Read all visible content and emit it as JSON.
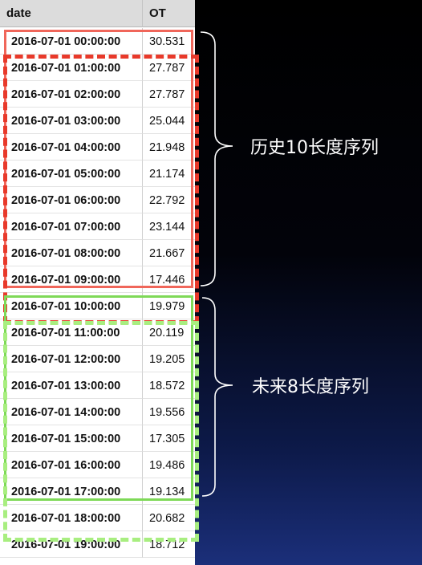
{
  "table": {
    "columns": [
      "date",
      "OT"
    ],
    "rows": [
      {
        "date": "2016-07-01 00:00:00",
        "ot": "30.531"
      },
      {
        "date": "2016-07-01 01:00:00",
        "ot": "27.787"
      },
      {
        "date": "2016-07-01 02:00:00",
        "ot": "27.787"
      },
      {
        "date": "2016-07-01 03:00:00",
        "ot": "25.044"
      },
      {
        "date": "2016-07-01 04:00:00",
        "ot": "21.948"
      },
      {
        "date": "2016-07-01 05:00:00",
        "ot": "21.174"
      },
      {
        "date": "2016-07-01 06:00:00",
        "ot": "22.792"
      },
      {
        "date": "2016-07-01 07:00:00",
        "ot": "23.144"
      },
      {
        "date": "2016-07-01 08:00:00",
        "ot": "21.667"
      },
      {
        "date": "2016-07-01 09:00:00",
        "ot": "17.446"
      },
      {
        "date": "2016-07-01 10:00:00",
        "ot": "19.979"
      },
      {
        "date": "2016-07-01 11:00:00",
        "ot": "20.119"
      },
      {
        "date": "2016-07-01 12:00:00",
        "ot": "19.205"
      },
      {
        "date": "2016-07-01 13:00:00",
        "ot": "18.572"
      },
      {
        "date": "2016-07-01 14:00:00",
        "ot": "19.556"
      },
      {
        "date": "2016-07-01 15:00:00",
        "ot": "17.305"
      },
      {
        "date": "2016-07-01 16:00:00",
        "ot": "19.486"
      },
      {
        "date": "2016-07-01 17:00:00",
        "ot": "19.134"
      },
      {
        "date": "2016-07-01 18:00:00",
        "ot": "20.682"
      },
      {
        "date": "2016-07-01 19:00:00",
        "ot": "18.712"
      }
    ]
  },
  "annotations": {
    "history_label": "历史10长度序列",
    "future_label": "未来8长度序列"
  },
  "colors": {
    "history_solid": "#f0665a",
    "history_dashed": "#e8392a",
    "future_solid": "#7ed957",
    "future_dashed": "#a8ee80"
  }
}
